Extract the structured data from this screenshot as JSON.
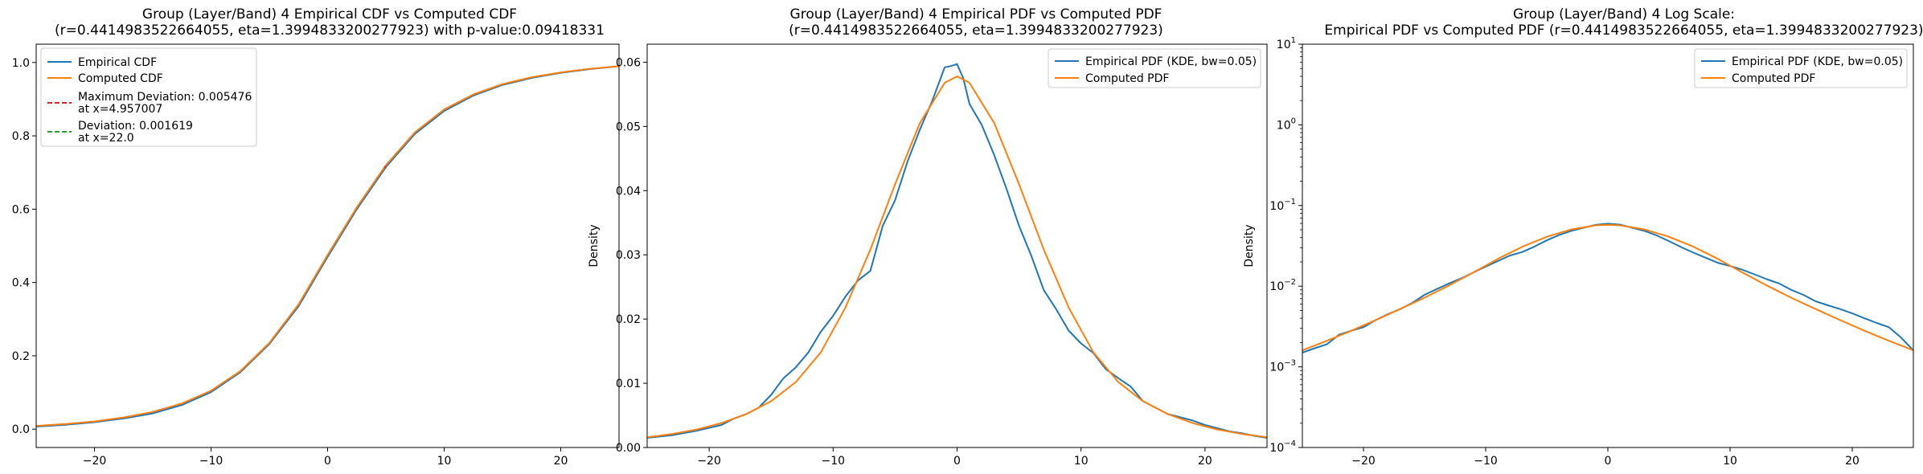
{
  "colors": {
    "empirical": "#1f77b4",
    "computed": "#ff7f0e",
    "max_dev": "#d62728",
    "dev": "#2ca02c"
  },
  "chart_data": [
    {
      "type": "line",
      "title_lines": [
        "Group (Layer/Band) 4 Empirical CDF vs Computed CDF",
        "(r=0.4414983522664055, eta=1.3994833200277923) with p-value:0.09418331"
      ],
      "xlabel": "",
      "ylabel": "",
      "xlim": [
        -25,
        25
      ],
      "ylim": [
        -0.05,
        1.05
      ],
      "yscale": "linear",
      "xticks": [
        -20,
        -10,
        0,
        10,
        20
      ],
      "xtick_labels": [
        "−20",
        "−10",
        "0",
        "10",
        "20"
      ],
      "yticks": [
        0.0,
        0.2,
        0.4,
        0.6,
        0.8,
        1.0
      ],
      "ytick_labels": [
        "0.0",
        "0.2",
        "0.4",
        "0.6",
        "0.8",
        "1.0"
      ],
      "grid": false,
      "legend_position": "top-left",
      "x": [
        -25,
        -22.5,
        -20,
        -17.5,
        -15,
        -12.5,
        -10,
        -7.5,
        -5,
        -2.5,
        0,
        2.5,
        5,
        7.5,
        10,
        12.5,
        15,
        17.5,
        20,
        22.5,
        25
      ],
      "series": [
        {
          "name": "Empirical CDF",
          "color_key": "empirical",
          "values": [
            0.007,
            0.012,
            0.019,
            0.029,
            0.043,
            0.066,
            0.101,
            0.155,
            0.232,
            0.335,
            0.47,
            0.6,
            0.715,
            0.806,
            0.868,
            0.91,
            0.939,
            0.958,
            0.972,
            0.982,
            0.99
          ]
        },
        {
          "name": "Computed CDF",
          "color_key": "computed",
          "values": [
            0.009,
            0.014,
            0.021,
            0.032,
            0.047,
            0.07,
            0.105,
            0.158,
            0.235,
            0.34,
            0.475,
            0.605,
            0.72,
            0.81,
            0.872,
            0.913,
            0.941,
            0.96,
            0.973,
            0.983,
            0.99
          ]
        }
      ],
      "annotations": [
        {
          "label": "Maximum Deviation: 0.005476",
          "label2": "at x=4.957007",
          "color_key": "max_dev",
          "x": 4.957007,
          "y1": 0.712,
          "y2": 0.717
        },
        {
          "label": "Deviation: 0.001619",
          "label2": "at x=22.0",
          "color_key": "dev",
          "x": 22.0,
          "y1": 0.979,
          "y2": 0.981
        }
      ]
    },
    {
      "type": "line",
      "title_lines": [
        "Group (Layer/Band) 4 Empirical PDF vs Computed PDF",
        "(r=0.4414983522664055, eta=1.3994833200277923)"
      ],
      "xlabel": "",
      "ylabel": "Density",
      "xlim": [
        -25,
        25
      ],
      "ylim": [
        0,
        0.0628
      ],
      "yscale": "linear",
      "xticks": [
        -20,
        -10,
        0,
        10,
        20
      ],
      "xtick_labels": [
        "−20",
        "−10",
        "0",
        "10",
        "20"
      ],
      "yticks": [
        0.0,
        0.01,
        0.02,
        0.03,
        0.04,
        0.05,
        0.06
      ],
      "ytick_labels": [
        "0.00",
        "0.01",
        "0.02",
        "0.03",
        "0.04",
        "0.05",
        "0.06"
      ],
      "grid": false,
      "legend_position": "top-right",
      "series": [
        {
          "name": "Empirical PDF (KDE, bw=0.05)",
          "color_key": "empirical",
          "x": [
            -25,
            -23,
            -21,
            -19,
            -18,
            -17,
            -16,
            -15,
            -14,
            -13,
            -12,
            -11,
            -10,
            -9,
            -8,
            -7,
            -6,
            -5,
            -4,
            -3,
            -2,
            -1,
            -0.5,
            0,
            0.5,
            1,
            2,
            3,
            4,
            5,
            6,
            7,
            8,
            9,
            10,
            11,
            12,
            13,
            14,
            15,
            16,
            17,
            18,
            19,
            20,
            21,
            22,
            23,
            24,
            25
          ],
          "values": [
            0.0015,
            0.0019,
            0.0026,
            0.0035,
            0.0045,
            0.0052,
            0.0062,
            0.0082,
            0.0108,
            0.0125,
            0.0148,
            0.018,
            0.0205,
            0.0235,
            0.026,
            0.0275,
            0.0345,
            0.0385,
            0.0445,
            0.0495,
            0.054,
            0.0592,
            0.0594,
            0.0597,
            0.0575,
            0.0535,
            0.0502,
            0.0455,
            0.0402,
            0.0345,
            0.0298,
            0.0245,
            0.0215,
            0.0182,
            0.0162,
            0.0147,
            0.0122,
            0.0108,
            0.0095,
            0.0072,
            0.0062,
            0.0052,
            0.0047,
            0.0042,
            0.0035,
            0.003,
            0.0025,
            0.0022,
            0.0018,
            0.0015
          ]
        },
        {
          "name": "Computed PDF",
          "color_key": "computed",
          "x": [
            -25,
            -23,
            -21,
            -19,
            -17,
            -15,
            -13,
            -11,
            -9,
            -7,
            -5,
            -3,
            -1,
            0,
            1,
            3,
            5,
            7,
            9,
            11,
            13,
            15,
            17,
            19,
            21,
            23,
            25
          ],
          "values": [
            0.0016,
            0.0021,
            0.0028,
            0.0038,
            0.0052,
            0.0072,
            0.0102,
            0.0148,
            0.0218,
            0.0308,
            0.041,
            0.0505,
            0.0568,
            0.0578,
            0.0568,
            0.0505,
            0.041,
            0.0308,
            0.0218,
            0.0148,
            0.0102,
            0.0072,
            0.0052,
            0.0038,
            0.0028,
            0.0021,
            0.0016
          ]
        }
      ]
    },
    {
      "type": "line",
      "title_lines": [
        "Group (Layer/Band) 4 Log Scale:",
        "Empirical PDF vs Computed PDF (r=0.4414983522664055, eta=1.3994833200277923)"
      ],
      "xlabel": "",
      "ylabel": "Density",
      "xlim": [
        -25,
        25
      ],
      "ylim": [
        0.0001,
        10
      ],
      "yscale": "log",
      "xticks": [
        -20,
        -10,
        0,
        10,
        20
      ],
      "xtick_labels": [
        "−20",
        "−10",
        "0",
        "10",
        "20"
      ],
      "yticks": [
        0.0001,
        0.001,
        0.01,
        0.1,
        1,
        10
      ],
      "ytick_bases": [
        "10",
        "10",
        "10",
        "10",
        "10",
        "10"
      ],
      "ytick_exps": [
        "−4",
        "−3",
        "−2",
        "−1",
        "0",
        "1"
      ],
      "grid": false,
      "legend_position": "top-right",
      "series": [
        {
          "name": "Empirical PDF (KDE, bw=0.05)",
          "color_key": "empirical",
          "x": [
            -25,
            -24,
            -23,
            -22,
            -21,
            -20,
            -19,
            -18,
            -17,
            -16,
            -15,
            -14,
            -13,
            -12,
            -11,
            -10,
            -9,
            -8,
            -7,
            -6,
            -5,
            -4,
            -3,
            -2,
            -1,
            0,
            1,
            2,
            3,
            4,
            5,
            6,
            7,
            8,
            9,
            10,
            11,
            12,
            13,
            14,
            15,
            16,
            17,
            18,
            19,
            20,
            21,
            22,
            23,
            24,
            25
          ],
          "values": [
            0.0015,
            0.0017,
            0.0019,
            0.0025,
            0.0028,
            0.0031,
            0.0038,
            0.0045,
            0.0052,
            0.0062,
            0.0078,
            0.0092,
            0.0108,
            0.0125,
            0.0148,
            0.0175,
            0.0205,
            0.024,
            0.0265,
            0.031,
            0.037,
            0.043,
            0.0485,
            0.053,
            0.0575,
            0.0595,
            0.058,
            0.053,
            0.0485,
            0.0425,
            0.0362,
            0.0305,
            0.026,
            0.0225,
            0.0195,
            0.0178,
            0.016,
            0.014,
            0.0122,
            0.0108,
            0.009,
            0.0078,
            0.0065,
            0.0058,
            0.0052,
            0.0046,
            0.004,
            0.0035,
            0.0031,
            0.0023,
            0.0016
          ]
        },
        {
          "name": "Computed PDF",
          "color_key": "computed",
          "x": [
            -25,
            -23,
            -21,
            -19,
            -17,
            -15,
            -13,
            -11,
            -9,
            -7,
            -5,
            -3,
            -1,
            0,
            1,
            3,
            5,
            7,
            9,
            11,
            13,
            15,
            17,
            19,
            21,
            23,
            25
          ],
          "values": [
            0.0016,
            0.0021,
            0.0028,
            0.0038,
            0.0052,
            0.0072,
            0.0102,
            0.0148,
            0.0218,
            0.0308,
            0.041,
            0.0505,
            0.0568,
            0.0578,
            0.0568,
            0.0505,
            0.041,
            0.0308,
            0.0218,
            0.0148,
            0.0102,
            0.0072,
            0.0052,
            0.0038,
            0.0028,
            0.0021,
            0.0016
          ]
        }
      ]
    }
  ]
}
